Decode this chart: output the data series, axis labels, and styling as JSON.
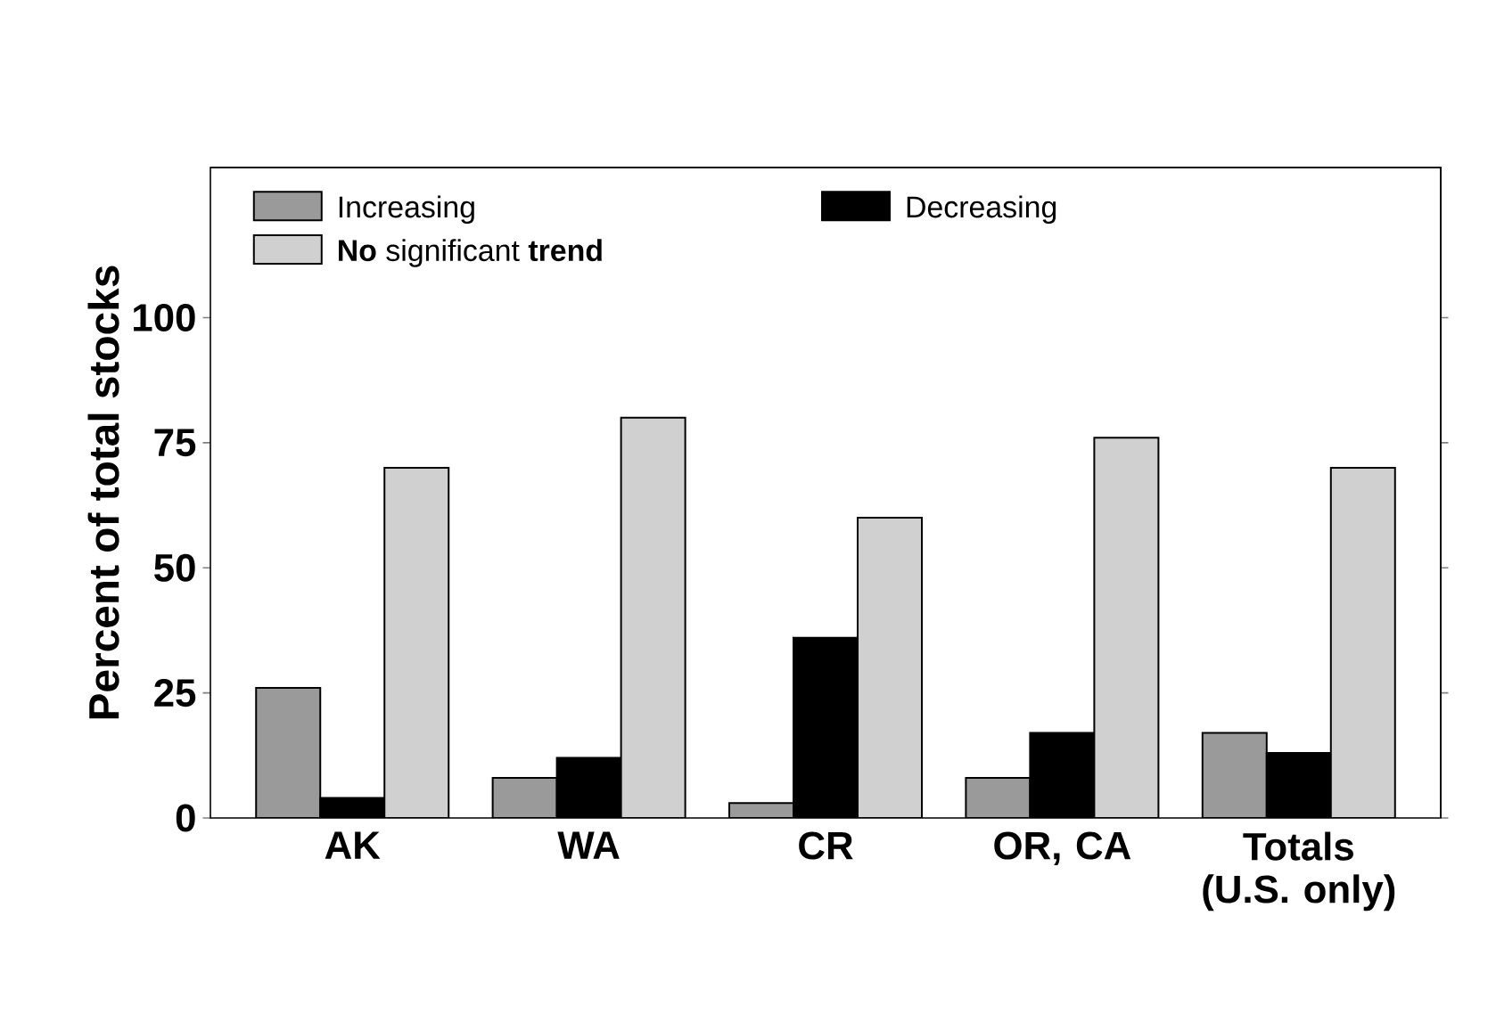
{
  "chart_data": {
    "type": "bar",
    "ylabel": "Percent of total stocks",
    "categories": [
      "AK",
      "WA",
      "CR",
      "OR, CA",
      "Totals (U.S. only)"
    ],
    "series": [
      {
        "name": "Increasing",
        "color": "#9a9a9a",
        "values": [
          26,
          8,
          3,
          8,
          17
        ]
      },
      {
        "name": "Decreasing",
        "color": "#000000",
        "values": [
          4,
          12,
          36,
          17,
          13
        ]
      },
      {
        "name": "**No** significant **trend**",
        "color": "#d0d0d0",
        "values": [
          70,
          80,
          60,
          76,
          70
        ]
      }
    ],
    "ylim": [
      0,
      130
    ],
    "yticks": [
      0,
      25,
      50,
      75,
      100
    ],
    "legend": "top left",
    "grid": false
  }
}
